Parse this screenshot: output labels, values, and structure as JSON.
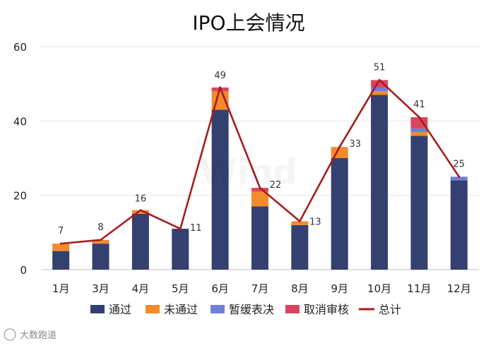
{
  "chart_data": {
    "type": "bar",
    "title": "IPO上会情况",
    "xlabel": "",
    "ylabel": "",
    "ylim": [
      0,
      60
    ],
    "yticks": [
      0,
      20,
      40,
      60
    ],
    "categories": [
      "1月",
      "3月",
      "4月",
      "5月",
      "6月",
      "7月",
      "8月",
      "9月",
      "10月",
      "11月",
      "12月"
    ],
    "series": [
      {
        "name": "通过",
        "kind": "bar",
        "color": "#34406f",
        "values": [
          5,
          7,
          15,
          11,
          43,
          17,
          12,
          30,
          47,
          36,
          24
        ]
      },
      {
        "name": "未通过",
        "kind": "bar",
        "color": "#f28a2e",
        "values": [
          2,
          1,
          1,
          0,
          5,
          4,
          1,
          3,
          1,
          1,
          0
        ]
      },
      {
        "name": "暂缓表决",
        "kind": "bar",
        "color": "#6f7fd8",
        "values": [
          0,
          0,
          0,
          0,
          0,
          0,
          0,
          0,
          1,
          1,
          1
        ]
      },
      {
        "name": "取消审核",
        "kind": "bar",
        "color": "#d9455f",
        "values": [
          0,
          0,
          0,
          0,
          1,
          1,
          0,
          0,
          2,
          3,
          0
        ]
      },
      {
        "name": "总计",
        "kind": "line",
        "color": "#a81c1c",
        "values": [
          7,
          8,
          16,
          11,
          49,
          22,
          13,
          33,
          51,
          41,
          25
        ]
      }
    ],
    "legend_position": "bottom",
    "grid": true
  },
  "watermark": {
    "center_text": "Wind",
    "corner_text": "大数跑道"
  }
}
